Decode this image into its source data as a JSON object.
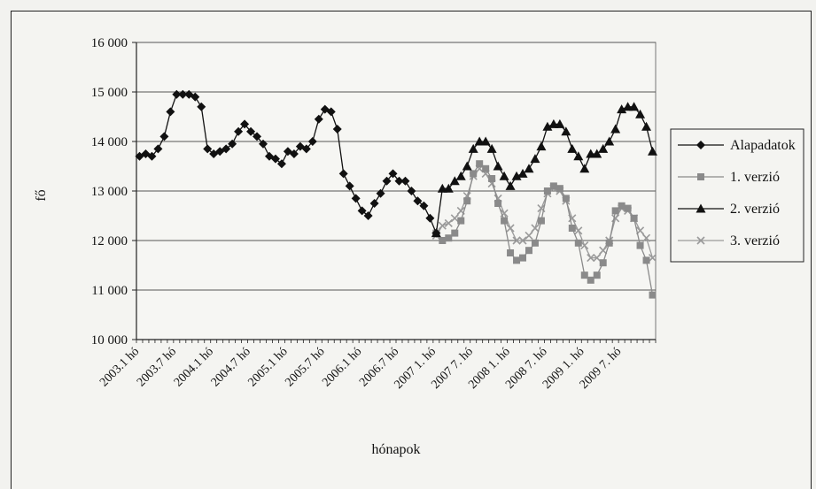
{
  "chart_data": {
    "type": "line",
    "title": "",
    "xlabel": "hónapok",
    "ylabel": "fő",
    "ylim": [
      10000,
      16000
    ],
    "yticks": [
      10000,
      11000,
      12000,
      13000,
      14000,
      15000,
      16000
    ],
    "ytick_labels": [
      "10 000",
      "11 000",
      "12 000",
      "13 000",
      "14 000",
      "15 000",
      "16 000"
    ],
    "xtick_labels": [
      "2003.1 hó",
      "2003.7 hó",
      "2004.1 hó",
      "2004.7 hó",
      "2005.1 hó",
      "2005.7 hó",
      "2006.1 hó",
      "2006.7 hó",
      "2007 1. hó",
      "2007 7. hó",
      "2008 1. hó",
      "2008 7. hó",
      "2009 1. hó",
      "2009 7. hó"
    ],
    "xtick_index": [
      0,
      6,
      12,
      18,
      24,
      30,
      36,
      42,
      48,
      54,
      60,
      66,
      72,
      78
    ],
    "n_months": 84,
    "grid": "horizontal",
    "legend_position": "right",
    "series": [
      {
        "name": "Alapadatok",
        "marker": "diamond",
        "color": "#111111",
        "start": 0,
        "values": [
          13700,
          13750,
          13700,
          13850,
          14100,
          14600,
          14950,
          14950,
          14950,
          14900,
          14700,
          13850,
          13750,
          13800,
          13850,
          13950,
          14200,
          14350,
          14200,
          14100,
          13950,
          13700,
          13650,
          13550,
          13800,
          13750,
          13900,
          13850,
          14000,
          14450,
          14650,
          14600,
          14250,
          13350,
          13100,
          12850,
          12600,
          12500,
          12750,
          12950,
          13200,
          13350,
          13200,
          13200,
          13000,
          12800,
          12700,
          12450,
          12150
        ]
      },
      {
        "name": "1. verzió",
        "marker": "square",
        "color": "#8a8a8a",
        "start": 48,
        "values": [
          12150,
          12000,
          12050,
          12150,
          12400,
          12800,
          13350,
          13550,
          13450,
          13250,
          12750,
          12400,
          11750,
          11600,
          11650,
          11800,
          11950,
          12400,
          13000,
          13100,
          13050,
          12850,
          12250,
          11950,
          11300,
          11200,
          11300,
          11550,
          11950,
          12600,
          12700,
          12650,
          12450,
          11900,
          11600,
          10900
        ]
      },
      {
        "name": "2. verzió",
        "marker": "triangle",
        "color": "#111111",
        "start": 48,
        "values": [
          12150,
          13050,
          13050,
          13200,
          13300,
          13500,
          13850,
          14000,
          14000,
          13850,
          13500,
          13300,
          13100,
          13300,
          13350,
          13450,
          13650,
          13900,
          14300,
          14350,
          14350,
          14200,
          13850,
          13700,
          13450,
          13750,
          13750,
          13850,
          14000,
          14250,
          14650,
          14700,
          14700,
          14550,
          14300,
          13800
        ]
      },
      {
        "name": "3. verzió",
        "marker": "x",
        "color": "#9a9a9a",
        "start": 48,
        "values": [
          12100,
          12300,
          12350,
          12450,
          12600,
          12900,
          13300,
          13450,
          13350,
          13150,
          12850,
          12550,
          12250,
          12000,
          12000,
          12100,
          12250,
          12650,
          12950,
          13050,
          13000,
          12800,
          12450,
          12200,
          11900,
          11650,
          11650,
          11800,
          12000,
          12450,
          12650,
          12600,
          12450,
          12200,
          12050,
          11650
        ]
      }
    ]
  }
}
